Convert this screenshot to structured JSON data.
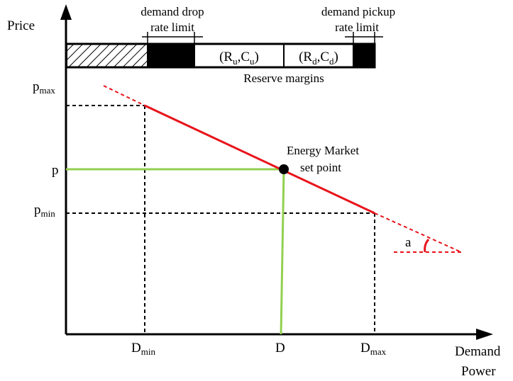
{
  "axes": {
    "y_label": "Price",
    "x_label_line1": "Demand",
    "x_label_line2": "Power"
  },
  "y_ticks": {
    "pmax": {
      "base": "p",
      "sub": "max"
    },
    "p": "p",
    "pmin": {
      "base": "p",
      "sub": "min"
    }
  },
  "x_ticks": {
    "dmin": {
      "base": "D",
      "sub": "min"
    },
    "d": "D",
    "dmax": {
      "base": "D",
      "sub": "max"
    }
  },
  "annotations": {
    "drop_limit_line1": "demand drop",
    "drop_limit_line2": "rate limit",
    "pickup_limit_line1": "demand pickup",
    "pickup_limit_line2": "rate limit",
    "reserve_margins": "Reserve margins",
    "setpoint_line1": "Energy Market",
    "setpoint_line2": "set point",
    "angle": "a"
  },
  "reserve_cells": {
    "up": {
      "open": "(R",
      "sub1": "u",
      "mid": ",C",
      "sub2": "u",
      "close": ")"
    },
    "down": {
      "open": "(R",
      "sub1": "d",
      "mid": ",C",
      "sub2": "d",
      "close": ")"
    }
  },
  "colors": {
    "demand_curve": "#e8141b",
    "setpoint_lines": "#92d050",
    "axis": "#000000"
  }
}
